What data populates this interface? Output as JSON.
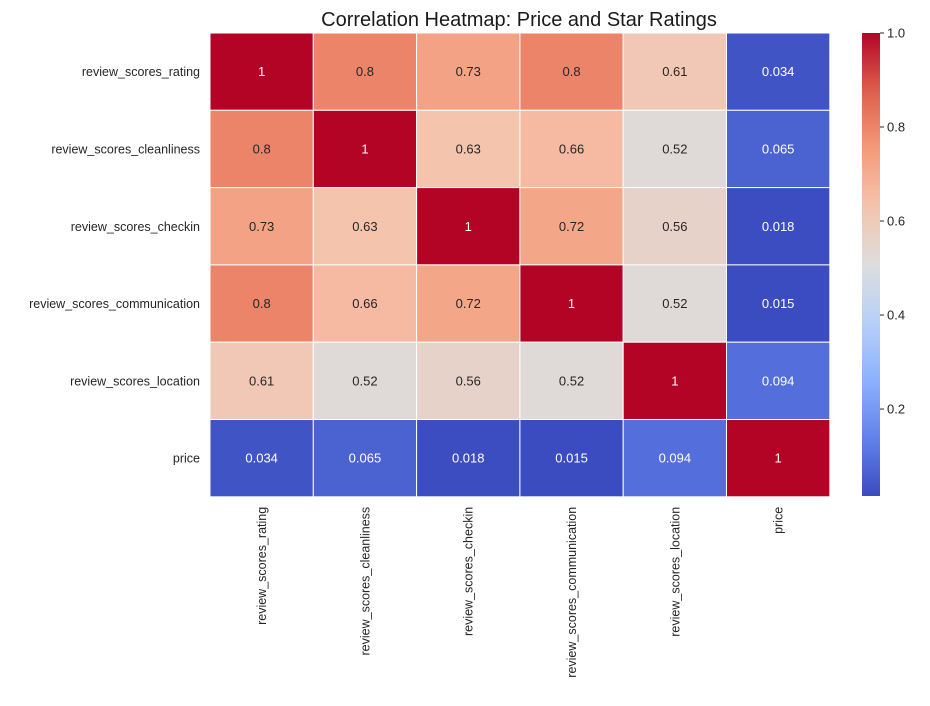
{
  "chart_data": {
    "type": "heatmap",
    "title": "Correlation Heatmap: Price and Star Ratings",
    "rows": [
      "review_scores_rating",
      "review_scores_cleanliness",
      "review_scores_checkin",
      "review_scores_communication",
      "review_scores_location",
      "price"
    ],
    "columns": [
      "review_scores_rating",
      "review_scores_cleanliness",
      "review_scores_checkin",
      "review_scores_communication",
      "review_scores_location",
      "price"
    ],
    "values": [
      [
        1,
        0.8,
        0.73,
        0.8,
        0.61,
        0.034
      ],
      [
        0.8,
        1,
        0.63,
        0.66,
        0.52,
        0.065
      ],
      [
        0.73,
        0.63,
        1,
        0.72,
        0.56,
        0.018
      ],
      [
        0.8,
        0.66,
        0.72,
        1,
        0.52,
        0.015
      ],
      [
        0.61,
        0.52,
        0.56,
        0.52,
        1,
        0.094
      ],
      [
        0.034,
        0.065,
        0.018,
        0.015,
        0.094,
        1
      ]
    ],
    "cell_labels": [
      [
        "1",
        "0.8",
        "0.73",
        "0.8",
        "0.61",
        "0.034"
      ],
      [
        "0.8",
        "1",
        "0.63",
        "0.66",
        "0.52",
        "0.065"
      ],
      [
        "0.73",
        "0.63",
        "1",
        "0.72",
        "0.56",
        "0.018"
      ],
      [
        "0.8",
        "0.66",
        "0.72",
        "1",
        "0.52",
        "0.015"
      ],
      [
        "0.61",
        "0.52",
        "0.56",
        "0.52",
        "1",
        "0.094"
      ],
      [
        "0.034",
        "0.065",
        "0.018",
        "0.015",
        "0.094",
        "1"
      ]
    ],
    "colormap": "coolwarm",
    "colorbar": {
      "range": [
        0.015,
        1.0
      ],
      "ticks": [
        0.2,
        0.4,
        0.6,
        0.8,
        1.0
      ],
      "tick_labels": [
        "0.2",
        "0.4",
        "0.6",
        "0.8",
        "1.0"
      ]
    },
    "grid": true,
    "colors": {
      "low": "#3b4cc0",
      "mid": "#dddddd",
      "high": "#b40426",
      "cell_border": "#ffffff"
    }
  }
}
